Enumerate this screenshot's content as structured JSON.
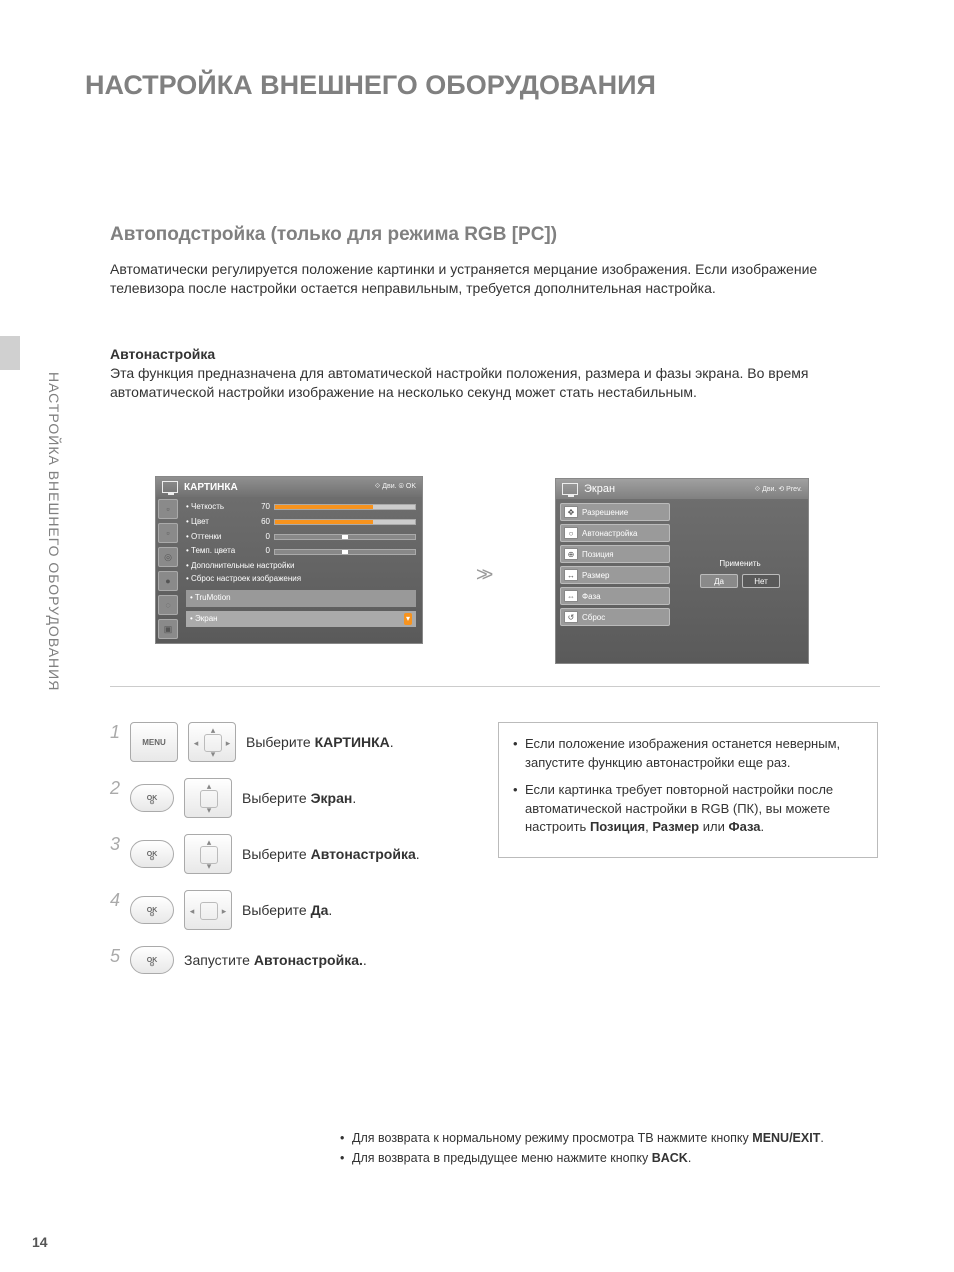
{
  "page": {
    "title": "НАСТРОЙКА ВНЕШНЕГО ОБОРУДОВАНИЯ",
    "vertical_label": "НАСТРОЙКА ВНЕШНЕГО ОБОРУДОВАНИЯ",
    "page_number": "14"
  },
  "section": {
    "title": "Автоподстройка (только для режима RGB [PC])",
    "intro": "Автоматически регулируется положение картинки и устраняется мерцание изображения. Если изображение телевизора после настройки остается неправильным, требуется дополнительная настройка.",
    "sub_title": "Автонастройка",
    "sub_para": "Эта функция предназначена для автоматической настройки положения, размера и фазы экрана. Во время автоматической настройки изображение на несколько секунд может стать нестабильным."
  },
  "osd_picture": {
    "header_title": "КАРТИНКА",
    "header_hint": "⟐ Дви.    ⊚ OK",
    "rows": [
      {
        "label": "• Четкость",
        "val": "70",
        "bar_type": "orange"
      },
      {
        "label": "• Цвет",
        "val": "60",
        "bar_type": "orange"
      },
      {
        "label": "• Оттенки",
        "val": "0",
        "bar_type": "mid"
      },
      {
        "label": "• Темп. цвета",
        "val": "0",
        "bar_type": "mid"
      }
    ],
    "lines": [
      "• Дополнительные настройки",
      "• Сброс настроек изображения"
    ],
    "bottom_items": [
      "• TruMotion",
      "• Экран"
    ],
    "scroll_glyph": "▾"
  },
  "osd_screen": {
    "header_title": "Экран",
    "header_hint": "⟐ Дви.    ⟲ Prev.",
    "items": [
      {
        "icon": "✥",
        "label": "Разрешение"
      },
      {
        "icon": "○",
        "label": "Автонастройка"
      },
      {
        "icon": "⊕",
        "label": "Позиция"
      },
      {
        "icon": "↔",
        "label": "Размер"
      },
      {
        "icon": "⇔",
        "label": "Фаза"
      },
      {
        "icon": "↺",
        "label": "Сброс"
      }
    ],
    "apply_label": "Применить",
    "yes": "Да",
    "no": "Нет"
  },
  "steps": [
    {
      "num": "1",
      "btn_type": "menu",
      "btn_label": "MENU",
      "dpad": "full",
      "text_pre": "Выберите ",
      "text_bold": "КАРТИНКА",
      "text_post": "."
    },
    {
      "num": "2",
      "btn_type": "ok",
      "btn_label": "OK",
      "dpad": "updown",
      "text_pre": "Выберите ",
      "text_bold": "Экран",
      "text_post": "."
    },
    {
      "num": "3",
      "btn_type": "ok",
      "btn_label": "OK",
      "dpad": "updown",
      "text_pre": "Выберите ",
      "text_bold": "Автонастройка",
      "text_post": "."
    },
    {
      "num": "4",
      "btn_type": "ok",
      "btn_label": "OK",
      "dpad": "leftright",
      "text_pre": "Выберите ",
      "text_bold": "Да",
      "text_post": "."
    },
    {
      "num": "5",
      "btn_type": "ok",
      "btn_label": "OK",
      "dpad": "none",
      "text_pre": "Запустите ",
      "text_bold": "Автонастройка.",
      "text_post": "."
    }
  ],
  "tips": [
    {
      "parts": [
        {
          "t": "Если положение изображения останется неверным, запустите функцию автонастройки еще раз."
        }
      ]
    },
    {
      "parts": [
        {
          "t": "Если картинка требует повторной настройки после автоматической настройки в RGB (ПК), вы можете настроить "
        },
        {
          "b": "Позиция"
        },
        {
          "t": ", "
        },
        {
          "b": "Размер"
        },
        {
          "t": " или "
        },
        {
          "b": "Фаза"
        },
        {
          "t": "."
        }
      ]
    }
  ],
  "footer_notes": [
    {
      "parts": [
        {
          "t": "Для возврата к нормальному режиму просмотра ТВ нажмите кнопку "
        },
        {
          "b": "MENU/EXIT"
        },
        {
          "t": "."
        }
      ]
    },
    {
      "parts": [
        {
          "t": "Для возврата в предыдущее меню нажмите кнопку "
        },
        {
          "b": "BACK"
        },
        {
          "t": "."
        }
      ]
    }
  ],
  "colors": {
    "title_gray": "#808080",
    "text": "#333333",
    "rule": "#cccccc",
    "osd_bg_top": "#707070",
    "osd_bg_bottom": "#5a5a5a",
    "bar_orange": "#f7931e"
  }
}
